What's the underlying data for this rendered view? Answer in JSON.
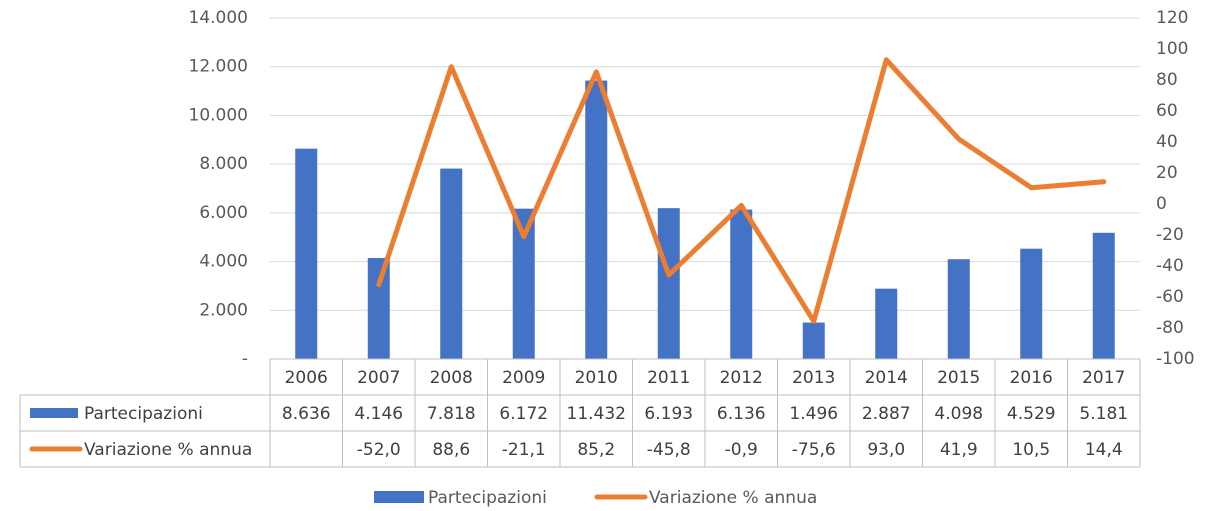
{
  "chart_data": {
    "type": "bar",
    "categories": [
      "2006",
      "2007",
      "2008",
      "2009",
      "2010",
      "2011",
      "2012",
      "2013",
      "2014",
      "2015",
      "2016",
      "2017"
    ],
    "series": [
      {
        "name": "Partecipazioni",
        "type": "bar",
        "axis": "left",
        "color": "#4472C4",
        "values": [
          8636,
          4146,
          7818,
          6172,
          11432,
          6193,
          6136,
          1496,
          2887,
          4098,
          4529,
          5181
        ],
        "labels": [
          "8.636",
          "4.146",
          "7.818",
          "6.172",
          "11.432",
          "6.193",
          "6.136",
          "1.496",
          "2.887",
          "4.098",
          "4.529",
          "5.181"
        ]
      },
      {
        "name": "Variazione % annua",
        "type": "line",
        "axis": "right",
        "color": "#ED7D31",
        "values": [
          null,
          -52.0,
          88.6,
          -21.1,
          85.2,
          -45.8,
          -0.9,
          -75.6,
          93.0,
          41.9,
          10.5,
          14.4
        ],
        "labels": [
          "",
          "-52,0",
          "88,6",
          "-21,1",
          "85,2",
          "-45,8",
          "-0,9",
          "-75,6",
          "93,0",
          "41,9",
          "10,5",
          "14,4"
        ]
      }
    ],
    "y_left": {
      "ylim": [
        0,
        14000
      ],
      "ticks": [
        0,
        2000,
        4000,
        6000,
        8000,
        10000,
        12000,
        14000
      ],
      "tick_labels": [
        "-",
        "2.000",
        "4.000",
        "6.000",
        "8.000",
        "10.000",
        "12.000",
        "14.000"
      ]
    },
    "y_right": {
      "ylim": [
        -100,
        120
      ],
      "ticks": [
        -100,
        -80,
        -60,
        -40,
        -20,
        0,
        20,
        40,
        60,
        80,
        100,
        120
      ],
      "tick_labels": [
        "-100",
        "-80",
        "-60",
        "-40",
        "-20",
        "0",
        "20",
        "40",
        "60",
        "80",
        "100",
        "120"
      ]
    },
    "grid": true,
    "data_table": true,
    "legend": {
      "position": "bottom",
      "entries": [
        "Partecipazioni",
        "Variazione % annua"
      ]
    }
  }
}
